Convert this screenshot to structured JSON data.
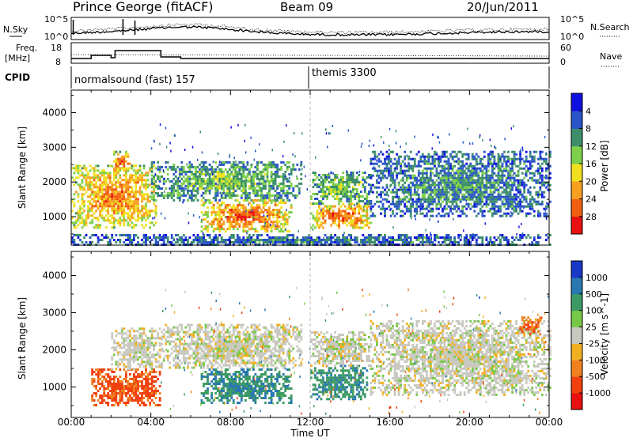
{
  "header": {
    "station": "Prince George (fitACF)",
    "beam": "Beam 09",
    "date": "20/Jun/2011"
  },
  "panel_labels": {
    "nsky": "N.Sky",
    "nsearch": "N.Search",
    "freq": "Freq.",
    "freq_unit": "[MHz]",
    "nave": "Nave",
    "cpid": "CPID"
  },
  "noise_axis": {
    "left_ticks": [
      "10^5",
      "10^0"
    ],
    "right_ticks": [
      "10^5",
      "10^0"
    ]
  },
  "freq_axis": {
    "left_ticks": [
      "18",
      "8"
    ],
    "right_ticks": [
      "60",
      "0"
    ]
  },
  "cpid": [
    {
      "start_hour": 0,
      "label": "normalsound (fast) 157"
    },
    {
      "start_hour": 12,
      "label": "themis 3300"
    }
  ],
  "chart_data": [
    {
      "type": "heatmap",
      "name": "power",
      "ylabel": "Slant Range [km]",
      "yticks": [
        1000,
        2000,
        3000,
        4000
      ],
      "ylim": [
        180,
        4650
      ],
      "xlim": [
        0,
        24
      ],
      "colorbar_label": "Power [dB]",
      "colorbar_ticks": [
        "4",
        "8",
        "12",
        "16",
        "20",
        "24",
        "28"
      ],
      "colorbar_colors": [
        "#1010e0",
        "#2a55c8",
        "#3c8f6a",
        "#7ed04a",
        "#f0e020",
        "#f8a020",
        "#f06010",
        "#e81010"
      ],
      "regions": [
        {
          "t": [
            0.0,
            4.3
          ],
          "r": [
            700,
            2500
          ],
          "level": 0.85
        },
        {
          "t": [
            2.0,
            3.0
          ],
          "r": [
            2300,
            2900
          ],
          "level": 0.9
        },
        {
          "t": [
            4.0,
            11.5
          ],
          "r": [
            1500,
            2600
          ],
          "level": 0.45
        },
        {
          "t": [
            6.5,
            11.0
          ],
          "r": [
            600,
            1500
          ],
          "level": 0.95
        },
        {
          "t": [
            12.0,
            15.0
          ],
          "r": [
            700,
            1400
          ],
          "level": 0.95
        },
        {
          "t": [
            12.0,
            15.0
          ],
          "r": [
            1400,
            2300
          ],
          "level": 0.5
        },
        {
          "t": [
            15.0,
            24.0
          ],
          "r": [
            1000,
            2900
          ],
          "level": 0.3
        },
        {
          "t": [
            0.0,
            24.0
          ],
          "r": [
            180,
            500
          ],
          "level": 0.25
        }
      ]
    },
    {
      "type": "heatmap",
      "name": "velocity",
      "ylabel": "Slant Range [km]",
      "yticks": [
        1000,
        2000,
        3000,
        4000
      ],
      "ylim": [
        180,
        4650
      ],
      "xlim": [
        0,
        24
      ],
      "xlabel": "Time UT",
      "xticks": [
        "00:00",
        "04:00",
        "08:00",
        "12:00",
        "16:00",
        "20:00",
        "00:00"
      ],
      "colorbar_label": "Velocity [m s^-1]",
      "colorbar_ticks": [
        "1000",
        "500",
        "100",
        "25",
        "-25",
        "-100",
        "-500",
        "-1000"
      ],
      "colorbar_colors": [
        "#1838c8",
        "#2a78b0",
        "#3c9a64",
        "#78c848",
        "#c8c8c0",
        "#f0b020",
        "#f08020",
        "#f04010",
        "#e81010"
      ],
      "regions": [
        {
          "t": [
            1.0,
            4.5
          ],
          "r": [
            500,
            1500
          ],
          "level": -0.7
        },
        {
          "t": [
            2.0,
            4.5
          ],
          "r": [
            1500,
            2600
          ],
          "level": 0.0
        },
        {
          "t": [
            4.5,
            11.5
          ],
          "r": [
            1500,
            2700
          ],
          "level": 0.0
        },
        {
          "t": [
            6.5,
            11.0
          ],
          "r": [
            600,
            1500
          ],
          "level": 0.6
        },
        {
          "t": [
            12.0,
            14.8
          ],
          "r": [
            700,
            1600
          ],
          "level": 0.55
        },
        {
          "t": [
            12.0,
            15.0
          ],
          "r": [
            1600,
            2500
          ],
          "level": 0.0
        },
        {
          "t": [
            15.0,
            24.0
          ],
          "r": [
            800,
            2800
          ],
          "level": 0.0
        },
        {
          "t": [
            22.5,
            23.5
          ],
          "r": [
            2400,
            2900
          ],
          "level": -0.6
        }
      ]
    }
  ]
}
